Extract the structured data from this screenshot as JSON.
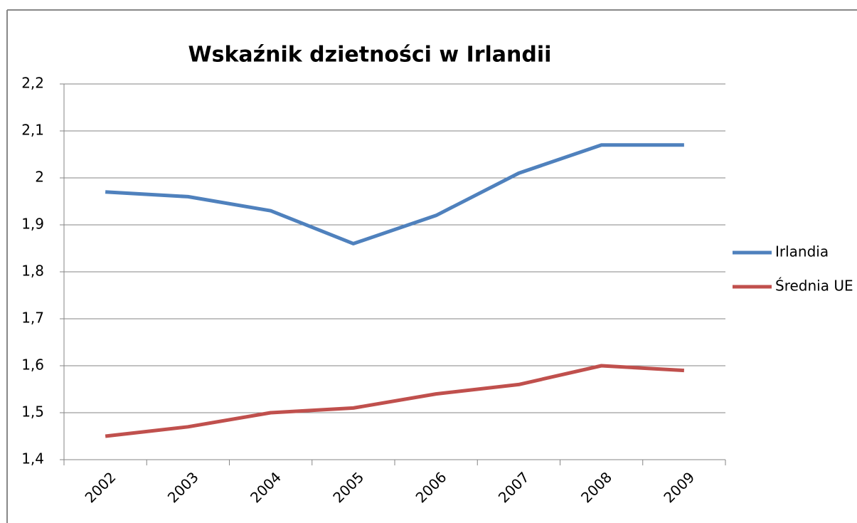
{
  "chart_data": {
    "type": "line",
    "title": "Wskaźnik dzietności w Irlandii",
    "categories": [
      "2002",
      "2003",
      "2004",
      "2005",
      "2006",
      "2007",
      "2008",
      "2009"
    ],
    "series": [
      {
        "name": "Irlandia",
        "color": "#4f81bd",
        "values": [
          1.97,
          1.96,
          1.93,
          1.86,
          1.92,
          2.01,
          2.07,
          2.07
        ]
      },
      {
        "name": "Średnia UE",
        "color": "#c0504d",
        "values": [
          1.45,
          1.47,
          1.5,
          1.51,
          1.54,
          1.56,
          1.6,
          1.59
        ]
      }
    ],
    "ylim": [
      1.4,
      2.2
    ],
    "yticks": [
      {
        "value": 1.4,
        "label": "1,4"
      },
      {
        "value": 1.5,
        "label": "1,5"
      },
      {
        "value": 1.6,
        "label": "1,6"
      },
      {
        "value": 1.7,
        "label": "1,7"
      },
      {
        "value": 1.8,
        "label": "1,8"
      },
      {
        "value": 1.9,
        "label": "1,9"
      },
      2,
      {
        "value": 2.1,
        "label": "2,1"
      },
      {
        "value": 2.2,
        "label": "2,2"
      }
    ],
    "grid": true,
    "legend": "right"
  }
}
